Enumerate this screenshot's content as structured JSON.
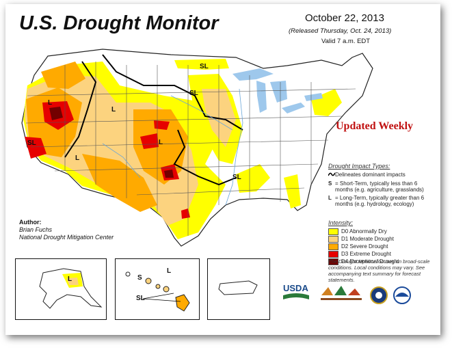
{
  "header": {
    "title": "U.S. Drought Monitor",
    "date": "October 22, 2013",
    "released": "(Released Thursday, Oct. 24, 2013)",
    "valid": "Valid 7 a.m. EDT"
  },
  "banner": "Updated Weekly",
  "map_labels": [
    "SL",
    "SL",
    "L",
    "L",
    "SL",
    "L",
    "L",
    "SL",
    "L",
    "S",
    "L",
    "SL"
  ],
  "impact_legend": {
    "heading": "Drought Impact Types:",
    "items": [
      {
        "key": "",
        "text": "Delineates dominant impacts"
      },
      {
        "key": "S",
        "text": "= Short-Term, typically less than 6 months (e.g. agriculture, grasslands)"
      },
      {
        "key": "L",
        "text": "= Long-Term, typically greater than 6 months (e.g. hydrology, ecology)"
      }
    ]
  },
  "intensity": {
    "heading": "Intensity:",
    "levels": [
      {
        "label": "D0 Abnormally Dry",
        "color": "#ffff00"
      },
      {
        "label": "D1 Moderate Drought",
        "color": "#fcd37f"
      },
      {
        "label": "D2 Severe Drought",
        "color": "#ffaa00"
      },
      {
        "label": "D3 Extreme Drought",
        "color": "#e60000"
      },
      {
        "label": "D4 Exceptional Drought",
        "color": "#730000"
      }
    ]
  },
  "note": "The Drought Monitor focuses on broad-scale conditions. Local conditions may vary. See accompanying text summary for forecast statements.",
  "author": {
    "heading": "Author:",
    "name": "Brian Fuchs",
    "org": "National Drought Mitigation Center"
  },
  "logos": {
    "usda": "USDA"
  },
  "colors": {
    "water": "#9ec8ec",
    "border": "#222222"
  }
}
